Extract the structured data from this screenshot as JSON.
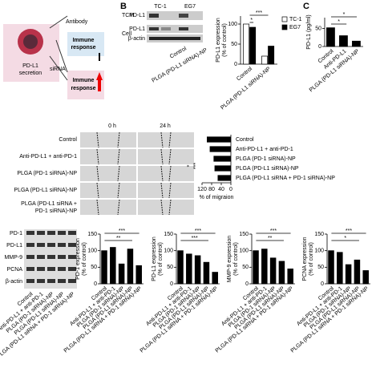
{
  "diagram": {
    "secretion": [
      "PD-L1",
      "secretion"
    ],
    "antibody": "Antibody",
    "sirna": "siRNA",
    "response_top": [
      "Immune",
      "response"
    ],
    "response_bottom": [
      "Immune",
      "response"
    ]
  },
  "panel_labels": [
    "B",
    "C"
  ],
  "blot_b": {
    "columns": [
      "TC-1",
      "EG7"
    ],
    "groups": [
      "TCM",
      "Cell"
    ],
    "rows": [
      "PD-L1",
      "PD-L1",
      "β-actin"
    ],
    "lanes": [
      "Control",
      "PLGA (PD-L1 siRNA)-NP"
    ]
  },
  "migration": {
    "times": [
      "0 h",
      "24 h"
    ],
    "rows": [
      "Control",
      "Anti-PD-L1 + anti-PD-1",
      "PLGA (PD-1 siRNA)-NP",
      "PLGA (PD-L1 siRNA)-NP",
      [
        "PLGA (PD-L1 siRNA +",
        "PD-1 siRNA)-NP"
      ]
    ]
  },
  "blot_bottom": {
    "rows": [
      "PD-1",
      "PD-L1",
      "MMP-9",
      "PCNA",
      "β-actin"
    ],
    "lanes": [
      "Control",
      "Anti-PD-L1 + anti-PD-1",
      "PLGA (PD-1 siRNA)-NP",
      "PLGA (PD-L1 siRNA)-NP",
      "PLGA (PD-L1 siRNA + PD-1 siRNA)-NP"
    ]
  },
  "chart_data": [
    {
      "type": "bar",
      "ylabel": [
        "PD-L1 expression",
        "(% of control)"
      ],
      "categories": [
        "Control",
        "PLGA (PD-L1 siRNA)-NP"
      ],
      "series": [
        {
          "name": "TC-1",
          "color": "#ffffff",
          "values": [
            100,
            20
          ]
        },
        {
          "name": "EG7",
          "color": "#000000",
          "values": [
            92,
            45
          ]
        }
      ],
      "ylim": [
        0,
        120
      ],
      "yticks": [
        0,
        50,
        100
      ],
      "annotations": [
        "***",
        "*"
      ],
      "legend": "upper right"
    },
    {
      "type": "bar",
      "ylabel": [
        "PD-L1 (pg/ml)"
      ],
      "categories": [
        "Control",
        "Anti-PD-L1",
        "PLGA (PD-L1 siRNA)-NP"
      ],
      "values": [
        52,
        30,
        15
      ],
      "color": "#000000",
      "ylim": [
        0,
        80
      ],
      "yticks": [
        0,
        50
      ],
      "annotations": [
        "*",
        "*"
      ]
    },
    {
      "type": "hbar",
      "xlabel": "% of migraion",
      "categories": [
        "Control",
        "Anti-PD-L1 + anti-PD-1",
        "PLGA (PD-1 siRNA)-NP",
        "PLGA (PD-L1 siRNA)-NP",
        "PLGA (PD-L1 siRNA + PD-1 siRNA)-NP"
      ],
      "values": [
        100,
        88,
        72,
        68,
        55
      ],
      "color": "#000000",
      "xlim": [
        120,
        0
      ],
      "xticks": [
        120,
        80,
        40,
        0
      ],
      "annotations": [
        "***",
        "*"
      ]
    },
    {
      "type": "bar",
      "ylabel": [
        "PD-1 expression",
        "(% of control)"
      ],
      "categories": [
        "Control",
        "Anti-PD-L1 + anti-PD-1",
        "PLGA (PD-1 siRNA)-NP",
        "PLGA (PD-L1 siRNA)-NP",
        "PLGA (PD-L1 siRNA + PD-1 siRNA)-NP"
      ],
      "values": [
        100,
        110,
        60,
        105,
        55
      ],
      "color": "#000000",
      "ylim": [
        0,
        150
      ],
      "yticks": [
        0,
        50,
        100,
        150
      ],
      "annotations": [
        "***",
        "**"
      ]
    },
    {
      "type": "bar",
      "ylabel": [
        "PD-L1 expression",
        "(% of control)"
      ],
      "categories": [
        "Control",
        "Anti-PD-L1 + anti-PD-1",
        "PLGA (PD-1 siRNA)-NP",
        "PLGA (PD-L1 siRNA)-NP",
        "PLGA (PD-L1 siRNA + PD-1 siRNA)-NP"
      ],
      "values": [
        100,
        90,
        85,
        65,
        35
      ],
      "color": "#000000",
      "ylim": [
        0,
        150
      ],
      "yticks": [
        0,
        50,
        100,
        150
      ],
      "annotations": [
        "***",
        "***"
      ]
    },
    {
      "type": "bar",
      "ylabel": [
        "MMP-9 expression",
        "(% of control)"
      ],
      "categories": [
        "Control",
        "Anti-PD-L1 + anti-PD-1",
        "PLGA (PD-1 siRNA)-NP",
        "PLGA (PD-L1 siRNA)-NP",
        "PLGA (PD-L1 siRNA + PD-1 siRNA)-NP"
      ],
      "values": [
        100,
        105,
        78,
        68,
        45
      ],
      "color": "#000000",
      "ylim": [
        0,
        150
      ],
      "yticks": [
        0,
        50,
        100,
        150
      ],
      "annotations": [
        "***",
        "**"
      ]
    },
    {
      "type": "bar",
      "ylabel": [
        "PCNA expression",
        "(% of control)"
      ],
      "categories": [
        "Control",
        "Anti-PD-L1 + anti-PD-1",
        "PLGA (PD-1 siRNA)-NP",
        "PLGA (PD-L1 siRNA)-NP",
        "PLGA (PD-L1 siRNA + PD-1 siRNA)-NP"
      ],
      "values": [
        100,
        95,
        58,
        72,
        40
      ],
      "color": "#000000",
      "ylim": [
        0,
        150
      ],
      "yticks": [
        0,
        50,
        100,
        150
      ],
      "annotations": [
        "***",
        "*"
      ]
    }
  ]
}
